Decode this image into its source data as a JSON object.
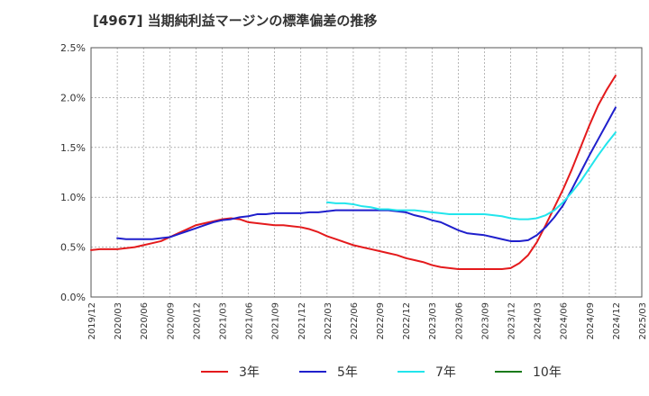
{
  "title": "[4967]  当期純利益マージンの標準偏差の推移",
  "colors": {
    "3y": "#e41a1c",
    "5y": "#1f1fcc",
    "7y": "#22e5ec",
    "10y": "#1b7a1b",
    "grid": "#888888",
    "axis": "#555555"
  },
  "chart_data": {
    "type": "line",
    "title": "[4967]  当期純利益マージンの標準偏差の推移",
    "xlabel": "",
    "ylabel": "",
    "x_ticks": [
      "2019/12",
      "2020/03",
      "2020/06",
      "2020/09",
      "2020/12",
      "2021/03",
      "2021/06",
      "2021/09",
      "2021/12",
      "2022/03",
      "2022/06",
      "2022/09",
      "2022/12",
      "2023/03",
      "2023/06",
      "2023/09",
      "2023/12",
      "2024/03",
      "2024/06",
      "2024/09",
      "2024/12",
      "2025/03"
    ],
    "y_ticks": [
      "0.0%",
      "0.5%",
      "1.0%",
      "1.5%",
      "2.0%",
      "2.5%"
    ],
    "ylim": [
      0,
      2.5
    ],
    "y_unit": "%",
    "grid": true,
    "legend_position": "bottom",
    "series": [
      {
        "name": "3年",
        "color": "#e41a1c",
        "points": [
          [
            "2019/12",
            0.47
          ],
          [
            "2020/01",
            0.48
          ],
          [
            "2020/02",
            0.48
          ],
          [
            "2020/03",
            0.48
          ],
          [
            "2020/04",
            0.49
          ],
          [
            "2020/05",
            0.5
          ],
          [
            "2020/06",
            0.52
          ],
          [
            "2020/07",
            0.54
          ],
          [
            "2020/08",
            0.56
          ],
          [
            "2020/09",
            0.6
          ],
          [
            "2020/10",
            0.64
          ],
          [
            "2020/11",
            0.68
          ],
          [
            "2020/12",
            0.72
          ],
          [
            "2021/01",
            0.74
          ],
          [
            "2021/02",
            0.76
          ],
          [
            "2021/03",
            0.78
          ],
          [
            "2021/04",
            0.79
          ],
          [
            "2021/05",
            0.78
          ],
          [
            "2021/06",
            0.75
          ],
          [
            "2021/07",
            0.74
          ],
          [
            "2021/08",
            0.73
          ],
          [
            "2021/09",
            0.72
          ],
          [
            "2021/10",
            0.72
          ],
          [
            "2021/11",
            0.71
          ],
          [
            "2021/12",
            0.7
          ],
          [
            "2022/01",
            0.68
          ],
          [
            "2022/02",
            0.65
          ],
          [
            "2022/03",
            0.61
          ],
          [
            "2022/04",
            0.58
          ],
          [
            "2022/05",
            0.55
          ],
          [
            "2022/06",
            0.52
          ],
          [
            "2022/07",
            0.5
          ],
          [
            "2022/08",
            0.48
          ],
          [
            "2022/09",
            0.46
          ],
          [
            "2022/10",
            0.44
          ],
          [
            "2022/11",
            0.42
          ],
          [
            "2022/12",
            0.39
          ],
          [
            "2023/01",
            0.37
          ],
          [
            "2023/02",
            0.35
          ],
          [
            "2023/03",
            0.32
          ],
          [
            "2023/04",
            0.3
          ],
          [
            "2023/05",
            0.29
          ],
          [
            "2023/06",
            0.28
          ],
          [
            "2023/07",
            0.28
          ],
          [
            "2023/08",
            0.28
          ],
          [
            "2023/09",
            0.28
          ],
          [
            "2023/10",
            0.28
          ],
          [
            "2023/11",
            0.28
          ],
          [
            "2023/12",
            0.29
          ],
          [
            "2024/01",
            0.34
          ],
          [
            "2024/02",
            0.42
          ],
          [
            "2024/03",
            0.55
          ],
          [
            "2024/04",
            0.72
          ],
          [
            "2024/05",
            0.9
          ],
          [
            "2024/06",
            1.08
          ],
          [
            "2024/07",
            1.28
          ],
          [
            "2024/08",
            1.5
          ],
          [
            "2024/09",
            1.72
          ],
          [
            "2024/10",
            1.92
          ],
          [
            "2024/11",
            2.08
          ],
          [
            "2024/12",
            2.22
          ]
        ]
      },
      {
        "name": "5年",
        "color": "#1f1fcc",
        "points": [
          [
            "2020/03",
            0.59
          ],
          [
            "2020/04",
            0.58
          ],
          [
            "2020/05",
            0.58
          ],
          [
            "2020/06",
            0.58
          ],
          [
            "2020/07",
            0.58
          ],
          [
            "2020/08",
            0.59
          ],
          [
            "2020/09",
            0.6
          ],
          [
            "2020/10",
            0.63
          ],
          [
            "2020/11",
            0.66
          ],
          [
            "2020/12",
            0.69
          ],
          [
            "2021/01",
            0.72
          ],
          [
            "2021/02",
            0.75
          ],
          [
            "2021/03",
            0.77
          ],
          [
            "2021/04",
            0.78
          ],
          [
            "2021/05",
            0.8
          ],
          [
            "2021/06",
            0.81
          ],
          [
            "2021/07",
            0.83
          ],
          [
            "2021/08",
            0.83
          ],
          [
            "2021/09",
            0.84
          ],
          [
            "2021/10",
            0.84
          ],
          [
            "2021/11",
            0.84
          ],
          [
            "2021/12",
            0.84
          ],
          [
            "2022/01",
            0.85
          ],
          [
            "2022/02",
            0.85
          ],
          [
            "2022/03",
            0.86
          ],
          [
            "2022/04",
            0.87
          ],
          [
            "2022/05",
            0.87
          ],
          [
            "2022/06",
            0.87
          ],
          [
            "2022/07",
            0.87
          ],
          [
            "2022/08",
            0.87
          ],
          [
            "2022/09",
            0.87
          ],
          [
            "2022/10",
            0.87
          ],
          [
            "2022/11",
            0.86
          ],
          [
            "2022/12",
            0.85
          ],
          [
            "2023/01",
            0.82
          ],
          [
            "2023/02",
            0.8
          ],
          [
            "2023/03",
            0.77
          ],
          [
            "2023/04",
            0.75
          ],
          [
            "2023/05",
            0.71
          ],
          [
            "2023/06",
            0.67
          ],
          [
            "2023/07",
            0.64
          ],
          [
            "2023/08",
            0.63
          ],
          [
            "2023/09",
            0.62
          ],
          [
            "2023/10",
            0.6
          ],
          [
            "2023/11",
            0.58
          ],
          [
            "2023/12",
            0.56
          ],
          [
            "2024/01",
            0.56
          ],
          [
            "2024/02",
            0.57
          ],
          [
            "2024/03",
            0.62
          ],
          [
            "2024/04",
            0.7
          ],
          [
            "2024/05",
            0.8
          ],
          [
            "2024/06",
            0.92
          ],
          [
            "2024/07",
            1.08
          ],
          [
            "2024/08",
            1.25
          ],
          [
            "2024/09",
            1.42
          ],
          [
            "2024/10",
            1.58
          ],
          [
            "2024/11",
            1.74
          ],
          [
            "2024/12",
            1.9
          ]
        ]
      },
      {
        "name": "7年",
        "color": "#22e5ec",
        "points": [
          [
            "2022/03",
            0.95
          ],
          [
            "2022/04",
            0.94
          ],
          [
            "2022/05",
            0.94
          ],
          [
            "2022/06",
            0.93
          ],
          [
            "2022/07",
            0.91
          ],
          [
            "2022/08",
            0.9
          ],
          [
            "2022/09",
            0.88
          ],
          [
            "2022/10",
            0.88
          ],
          [
            "2022/11",
            0.87
          ],
          [
            "2022/12",
            0.87
          ],
          [
            "2023/01",
            0.87
          ],
          [
            "2023/02",
            0.86
          ],
          [
            "2023/03",
            0.85
          ],
          [
            "2023/04",
            0.84
          ],
          [
            "2023/05",
            0.83
          ],
          [
            "2023/06",
            0.83
          ],
          [
            "2023/07",
            0.83
          ],
          [
            "2023/08",
            0.83
          ],
          [
            "2023/09",
            0.83
          ],
          [
            "2023/10",
            0.82
          ],
          [
            "2023/11",
            0.81
          ],
          [
            "2023/12",
            0.79
          ],
          [
            "2024/01",
            0.78
          ],
          [
            "2024/02",
            0.78
          ],
          [
            "2024/03",
            0.79
          ],
          [
            "2024/04",
            0.82
          ],
          [
            "2024/05",
            0.87
          ],
          [
            "2024/06",
            0.95
          ],
          [
            "2024/07",
            1.05
          ],
          [
            "2024/08",
            1.16
          ],
          [
            "2024/09",
            1.29
          ],
          [
            "2024/10",
            1.42
          ],
          [
            "2024/11",
            1.54
          ],
          [
            "2024/12",
            1.65
          ]
        ]
      },
      {
        "name": "10年",
        "color": "#1b7a1b",
        "points": []
      }
    ]
  }
}
